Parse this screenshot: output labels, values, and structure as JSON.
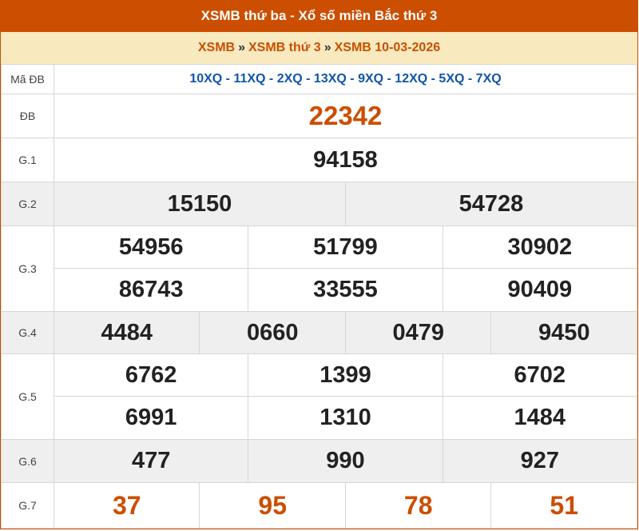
{
  "header": {
    "title": "XSMB thứ ba - Xổ số miền Bắc thứ 3"
  },
  "breadcrumb": [
    {
      "label": "XSMB"
    },
    {
      "label": "XSMB thứ 3"
    },
    {
      "label": "XSMB 10-03-2026"
    }
  ],
  "breadcrumb_sep": "»",
  "colors": {
    "accent": "#cc4e00",
    "breadcrumb_bg": "#f8e9bf",
    "code": "#1155aa"
  },
  "ma_db": {
    "label": "Mã ĐB",
    "value": "10XQ - 11XQ - 2XQ - 13XQ - 9XQ - 12XQ - 5XQ - 7XQ"
  },
  "prizes": {
    "db": {
      "label": "ĐB",
      "numbers": [
        "22342"
      ]
    },
    "g1": {
      "label": "G.1",
      "numbers": [
        "94158"
      ]
    },
    "g2": {
      "label": "G.2",
      "numbers": [
        "15150",
        "54728"
      ]
    },
    "g3": {
      "label": "G.3",
      "numbers": [
        "54956",
        "51799",
        "30902",
        "86743",
        "33555",
        "90409"
      ]
    },
    "g4": {
      "label": "G.4",
      "numbers": [
        "4484",
        "0660",
        "0479",
        "9450"
      ]
    },
    "g5": {
      "label": "G.5",
      "numbers": [
        "6762",
        "1399",
        "6702",
        "6991",
        "1310",
        "1484"
      ]
    },
    "g6": {
      "label": "G.6",
      "numbers": [
        "477",
        "990",
        "927"
      ]
    },
    "g7": {
      "label": "G.7",
      "numbers": [
        "37",
        "95",
        "78",
        "51"
      ]
    }
  }
}
